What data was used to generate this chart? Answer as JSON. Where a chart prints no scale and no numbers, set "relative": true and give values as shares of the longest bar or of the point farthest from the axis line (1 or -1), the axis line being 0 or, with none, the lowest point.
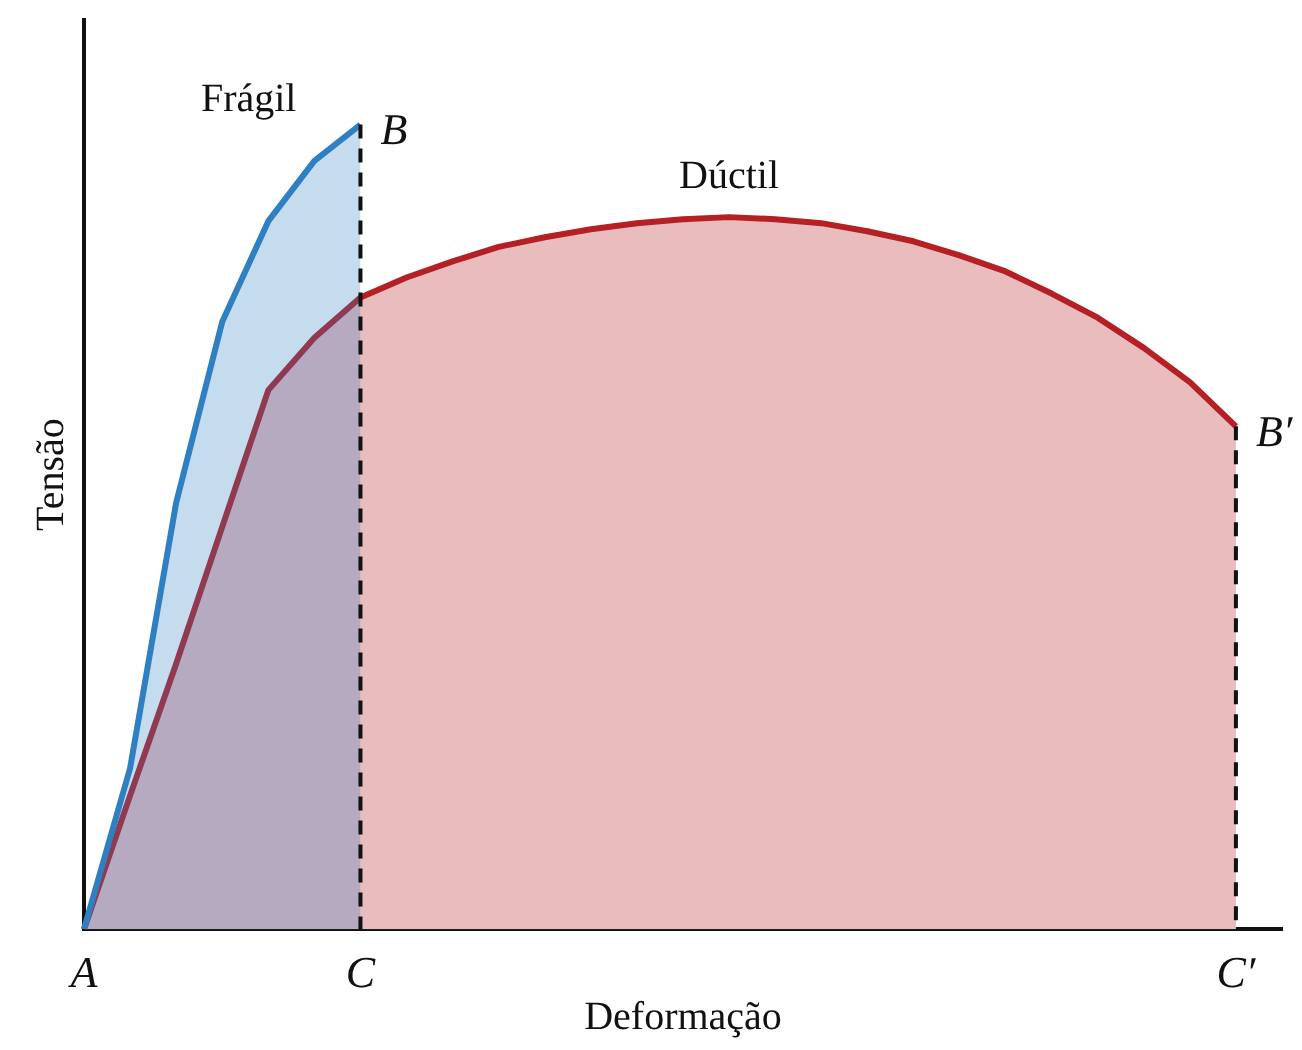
{
  "chart_data": {
    "type": "area",
    "relative": true,
    "xlabel": "Deformação",
    "ylabel": "Tensão",
    "legend": false,
    "categories": [
      "A",
      null,
      null,
      null,
      null,
      null,
      "C",
      null,
      null,
      null,
      null,
      null,
      null,
      null,
      null,
      null,
      null,
      null,
      null,
      null,
      null,
      null,
      null,
      null,
      null,
      "C′",
      null
    ],
    "series": [
      {
        "name": "Dúctil",
        "color": "#b52025",
        "values": [
          0,
          0.166,
          0.33,
          0.5,
          0.67,
          0.735,
          0.785,
          0.81,
          0.83,
          0.848,
          0.86,
          0.87,
          0.8775,
          0.8825,
          0.885,
          0.8825,
          0.8775,
          0.8675,
          0.855,
          0.8375,
          0.8175,
          0.79,
          0.76,
          0.7225,
          0.68,
          0.625,
          null
        ]
      },
      {
        "name": "Frágil",
        "color": "#2f7fc3",
        "values": [
          0,
          0.2,
          0.53,
          0.755,
          0.88,
          0.955,
          1.0,
          null,
          null,
          null,
          null,
          null,
          null,
          null,
          null,
          null,
          null,
          null,
          null,
          null,
          null,
          null,
          null,
          null,
          null,
          null,
          null
        ]
      }
    ],
    "annotations": [
      {
        "text": "B",
        "x": "C",
        "y": 1.0
      },
      {
        "text": "B′",
        "x": "C′",
        "y": 0.625
      }
    ]
  }
}
